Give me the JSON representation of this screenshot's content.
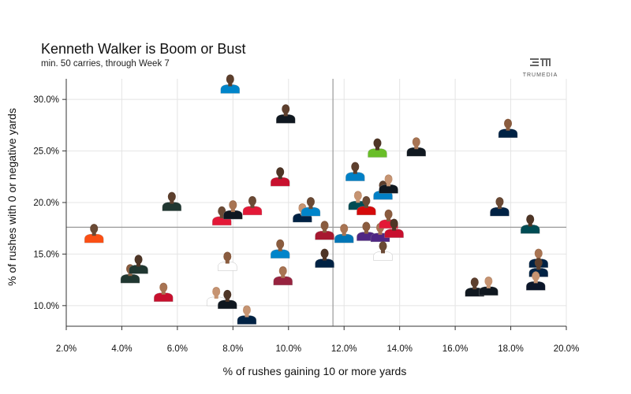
{
  "header": {
    "title": "Kenneth Walker is Boom or Bust",
    "subtitle": "min. 50 carries, through Week 7",
    "logo_text": "TRUMEDIA"
  },
  "chart_data": {
    "type": "scatter",
    "title": "Kenneth Walker is Boom or Bust",
    "subtitle": "min. 50 carries, through Week 7",
    "xlabel": "% of rushes gaining 10 or more yards",
    "ylabel": "% of rushes with 0 or negative yards",
    "xlim": [
      2.0,
      20.0
    ],
    "ylim": [
      8.0,
      32.0
    ],
    "xticks": [
      "2.0%",
      "4.0%",
      "6.0%",
      "8.0%",
      "10.0%",
      "12.0%",
      "14.0%",
      "16.0%",
      "18.0%",
      "20.0%"
    ],
    "yticks": [
      "10.0%",
      "15.0%",
      "20.0%",
      "25.0%",
      "30.0%"
    ],
    "xtick_values": [
      2,
      4,
      6,
      8,
      10,
      12,
      14,
      16,
      18,
      20
    ],
    "ytick_values": [
      10,
      15,
      20,
      25,
      30
    ],
    "reference_lines": {
      "x": 11.6,
      "y": 17.6
    },
    "grid": true,
    "marker": "player headshot",
    "points": [
      {
        "x": 3.0,
        "y": 16.7,
        "jersey": "#fb4f14"
      },
      {
        "x": 4.3,
        "y": 12.8,
        "jersey": "#203731"
      },
      {
        "x": 4.6,
        "y": 13.7,
        "jersey": "#203731"
      },
      {
        "x": 5.5,
        "y": 11.0,
        "jersey": "#c8102e"
      },
      {
        "x": 5.8,
        "y": 19.8,
        "jersey": "#203731"
      },
      {
        "x": 7.4,
        "y": 10.6,
        "jersey": "#ffffff"
      },
      {
        "x": 7.6,
        "y": 18.4,
        "jersey": "#e31837"
      },
      {
        "x": 7.8,
        "y": 14.0,
        "jersey": "#ffffff"
      },
      {
        "x": 7.8,
        "y": 10.3,
        "jersey": "#101820"
      },
      {
        "x": 8.0,
        "y": 19.0,
        "jersey": "#101820"
      },
      {
        "x": 7.9,
        "y": 31.2,
        "jersey": "#0085ca"
      },
      {
        "x": 8.5,
        "y": 8.8,
        "jersey": "#002244"
      },
      {
        "x": 8.7,
        "y": 19.4,
        "jersey": "#e31837"
      },
      {
        "x": 9.7,
        "y": 15.2,
        "jersey": "#0085ca"
      },
      {
        "x": 9.7,
        "y": 22.2,
        "jersey": "#c8102e"
      },
      {
        "x": 9.8,
        "y": 12.6,
        "jersey": "#97233f"
      },
      {
        "x": 9.9,
        "y": 28.3,
        "jersey": "#101820"
      },
      {
        "x": 10.5,
        "y": 18.7,
        "jersey": "#002244"
      },
      {
        "x": 10.8,
        "y": 19.3,
        "jersey": "#0085ca"
      },
      {
        "x": 11.3,
        "y": 17.0,
        "jersey": "#a71930"
      },
      {
        "x": 11.3,
        "y": 14.3,
        "jersey": "#002244"
      },
      {
        "x": 12.0,
        "y": 16.7,
        "jersey": "#0076b6"
      },
      {
        "x": 12.4,
        "y": 22.7,
        "jersey": "#0080c6"
      },
      {
        "x": 12.5,
        "y": 19.9,
        "jersey": "#004c54"
      },
      {
        "x": 12.8,
        "y": 19.4,
        "jersey": "#d50a0a"
      },
      {
        "x": 12.8,
        "y": 16.9,
        "jersey": "#4f2683"
      },
      {
        "x": 13.2,
        "y": 25.0,
        "jersey": "#69be28"
      },
      {
        "x": 13.3,
        "y": 16.8,
        "jersey": "#4f2683"
      },
      {
        "x": 13.4,
        "y": 20.9,
        "jersey": "#0080c6"
      },
      {
        "x": 13.6,
        "y": 21.5,
        "jersey": "#101820"
      },
      {
        "x": 13.4,
        "y": 15.0,
        "jersey": "#ffffff"
      },
      {
        "x": 13.6,
        "y": 18.1,
        "jersey": "#e31837"
      },
      {
        "x": 13.8,
        "y": 17.2,
        "jersey": "#c8102e"
      },
      {
        "x": 14.6,
        "y": 25.1,
        "jersey": "#101820"
      },
      {
        "x": 16.7,
        "y": 11.5,
        "jersey": "#101820"
      },
      {
        "x": 17.2,
        "y": 11.6,
        "jersey": "#101820"
      },
      {
        "x": 17.6,
        "y": 19.3,
        "jersey": "#002244"
      },
      {
        "x": 17.9,
        "y": 26.9,
        "jersey": "#002244"
      },
      {
        "x": 18.7,
        "y": 17.6,
        "jersey": "#004c54"
      },
      {
        "x": 19.0,
        "y": 14.3,
        "jersey": "#002244"
      },
      {
        "x": 19.0,
        "y": 13.4,
        "jersey": "#002244"
      },
      {
        "x": 18.9,
        "y": 12.1,
        "jersey": "#0b162a"
      }
    ]
  }
}
